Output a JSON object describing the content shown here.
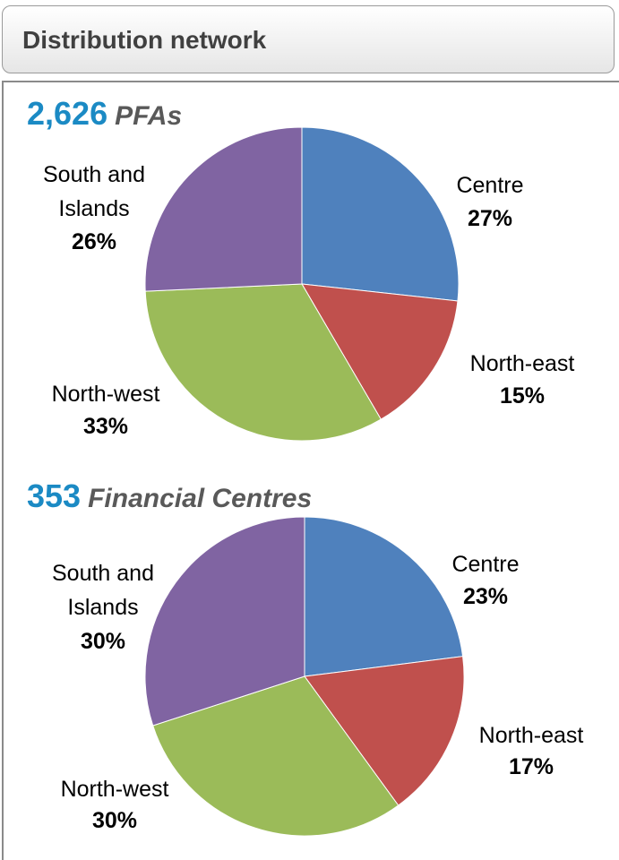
{
  "header": {
    "title": "Distribution network"
  },
  "chart_data": [
    {
      "type": "pie",
      "title_number": "2,626",
      "title_text": "PFAs",
      "categories": [
        "Centre",
        "North-east",
        "North-west",
        "South and Islands"
      ],
      "values": [
        27,
        15,
        33,
        26
      ],
      "value_labels": [
        "27%",
        "15%",
        "33%",
        "26%"
      ],
      "colors": [
        "#4f81bd",
        "#c0504d",
        "#9bbb59",
        "#8064a2"
      ]
    },
    {
      "type": "pie",
      "title_number": "353",
      "title_text": "Financial Centres",
      "categories": [
        "Centre",
        "North-east",
        "North-west",
        "South and Islands"
      ],
      "values": [
        23,
        17,
        30,
        30
      ],
      "value_labels": [
        "23%",
        "17%",
        "30%",
        "30%"
      ],
      "colors": [
        "#4f81bd",
        "#c0504d",
        "#9bbb59",
        "#8064a2"
      ]
    }
  ]
}
